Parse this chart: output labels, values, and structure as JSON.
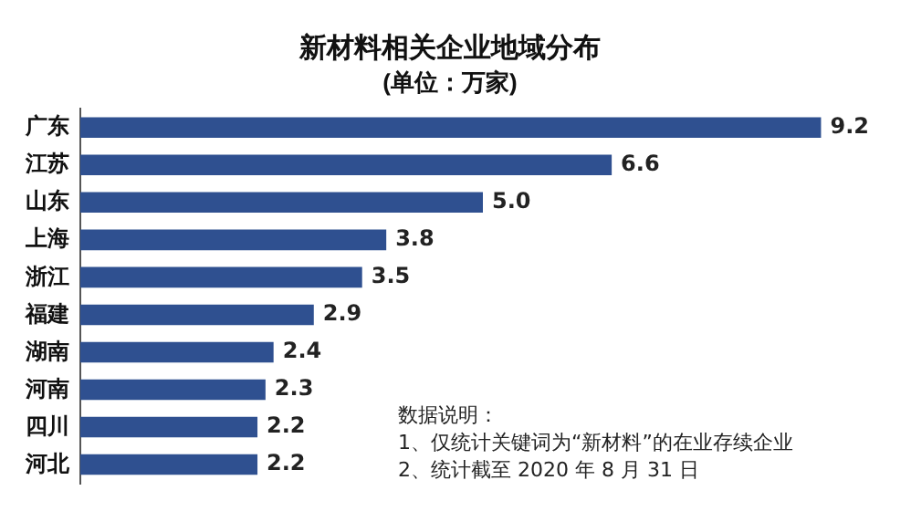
{
  "chart_data": {
    "type": "bar",
    "orientation": "horizontal",
    "title": "新材料相关企业地域分布",
    "subtitle": "(单位：万家)",
    "categories": [
      "广东",
      "江苏",
      "山东",
      "上海",
      "浙江",
      "福建",
      "湖南",
      "河南",
      "四川",
      "河北"
    ],
    "values": [
      9.2,
      6.6,
      5.0,
      3.8,
      3.5,
      2.9,
      2.4,
      2.3,
      2.2,
      2.2
    ],
    "value_labels": [
      "9.2",
      "6.6",
      "5.0",
      "3.8",
      "3.5",
      "2.9",
      "2.4",
      "2.3",
      "2.2",
      "2.2"
    ],
    "color": "#2f5090",
    "legend": false,
    "annotations": [
      "数据说明：",
      "1、仅统计关键词为“新材料”的在业存续企业",
      "2、统计截至 2020 年 8 月 31 日"
    ]
  }
}
